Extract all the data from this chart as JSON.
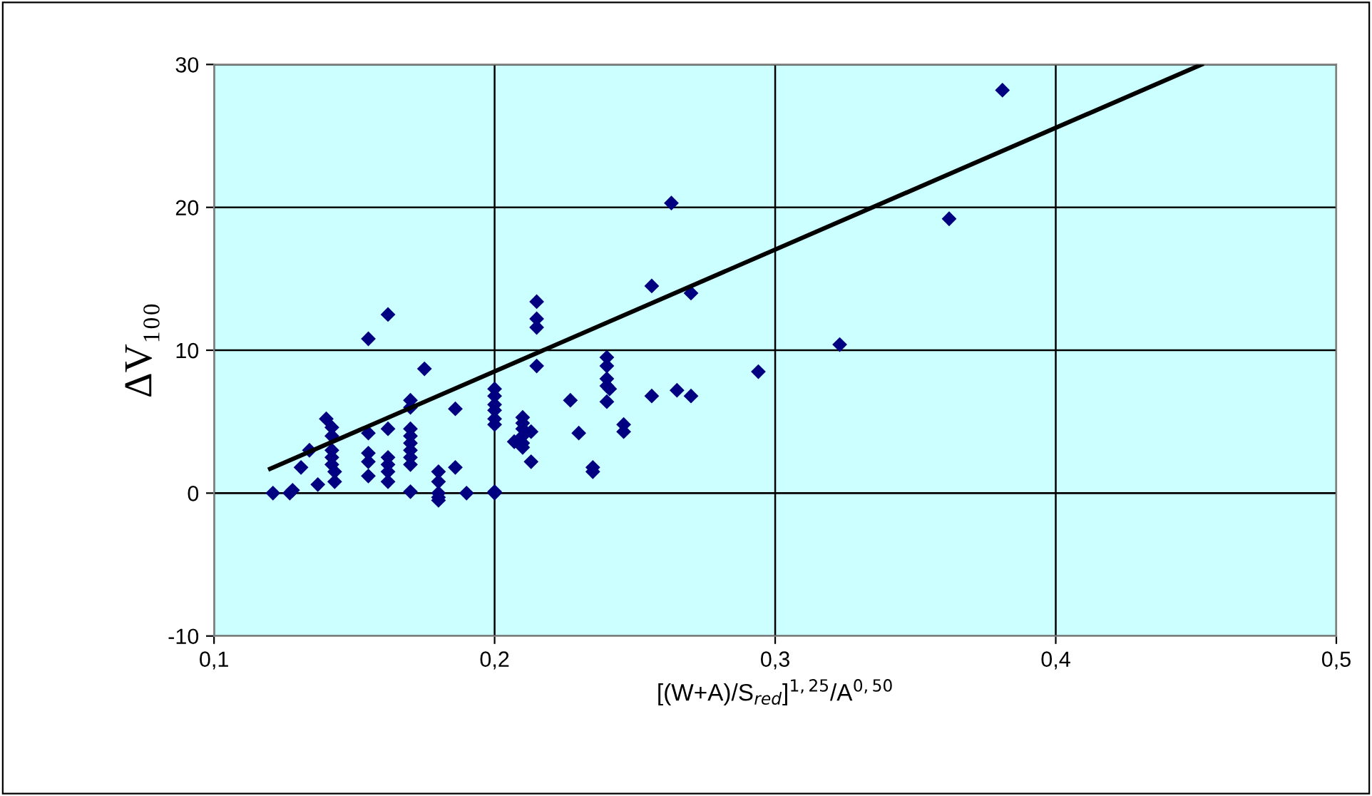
{
  "chart_data": {
    "type": "scatter",
    "xlabel": "[(W+A)/S$_{red}$]$^{1,25}$/A$^{0,50}$",
    "ylabel": "ΔV₁₀₀",
    "xlim": [
      0.1,
      0.5
    ],
    "ylim": [
      -10,
      30
    ],
    "xticks": [
      {
        "value": 0.1,
        "label": "0,1"
      },
      {
        "value": 0.2,
        "label": "0,2"
      },
      {
        "value": 0.3,
        "label": "0,3"
      },
      {
        "value": 0.4,
        "label": "0,4"
      },
      {
        "value": 0.5,
        "label": "0,5"
      }
    ],
    "yticks": [
      -10,
      0,
      10,
      20,
      30
    ],
    "grid": true,
    "series": [
      {
        "color": "#000080",
        "marker": "diamond",
        "x": [
          0.121,
          0.127,
          0.128,
          0.131,
          0.134,
          0.137,
          0.14,
          0.142,
          0.142,
          0.142,
          0.142,
          0.142,
          0.143,
          0.143,
          0.155,
          0.155,
          0.155,
          0.155,
          0.155,
          0.162,
          0.162,
          0.162,
          0.162,
          0.162,
          0.162,
          0.17,
          0.17,
          0.17,
          0.17,
          0.17,
          0.17,
          0.17,
          0.17,
          0.17,
          0.175,
          0.18,
          0.18,
          0.18,
          0.18,
          0.18,
          0.186,
          0.186,
          0.19,
          0.2,
          0.2,
          0.2,
          0.2,
          0.2,
          0.2,
          0.2,
          0.2,
          0.207,
          0.21,
          0.21,
          0.21,
          0.21,
          0.21,
          0.21,
          0.213,
          0.213,
          0.215,
          0.215,
          0.215,
          0.215,
          0.227,
          0.23,
          0.235,
          0.235,
          0.24,
          0.24,
          0.24,
          0.24,
          0.241,
          0.24,
          0.246,
          0.246,
          0.256,
          0.256,
          0.263,
          0.265,
          0.27,
          0.27,
          0.294,
          0.323,
          0.362,
          0.381
        ],
        "values": [
          0,
          0,
          0.2,
          1.8,
          3.0,
          0.6,
          5.2,
          4.6,
          4.0,
          3.0,
          2.5,
          2.0,
          1.5,
          0.8,
          10.8,
          4.2,
          2.8,
          2.2,
          1.2,
          12.5,
          4.5,
          2.5,
          2.0,
          1.5,
          0.8,
          6.5,
          6.0,
          4.5,
          4.0,
          3.5,
          3.0,
          2.5,
          2.0,
          0.1,
          8.7,
          1.5,
          0.8,
          0,
          -0.3,
          -0.5,
          5.9,
          1.8,
          0,
          7.3,
          6.8,
          6.2,
          5.8,
          5.2,
          4.8,
          0.1,
          0,
          3.6,
          5.3,
          4.9,
          4.5,
          4.0,
          3.5,
          3.2,
          2.2,
          4.3,
          13.4,
          12.2,
          11.6,
          8.9,
          6.5,
          4.2,
          1.8,
          1.5,
          9.5,
          8.9,
          8.0,
          7.5,
          7.3,
          6.4,
          4.8,
          4.3,
          14.5,
          6.8,
          20.3,
          7.2,
          14.0,
          6.8,
          8.5,
          10.4,
          19.2,
          28.2
        ]
      },
      {
        "type": "line",
        "color": "#000000",
        "x": [
          0.12,
          0.452
        ],
        "values": [
          1.7,
          30
        ]
      }
    ]
  }
}
